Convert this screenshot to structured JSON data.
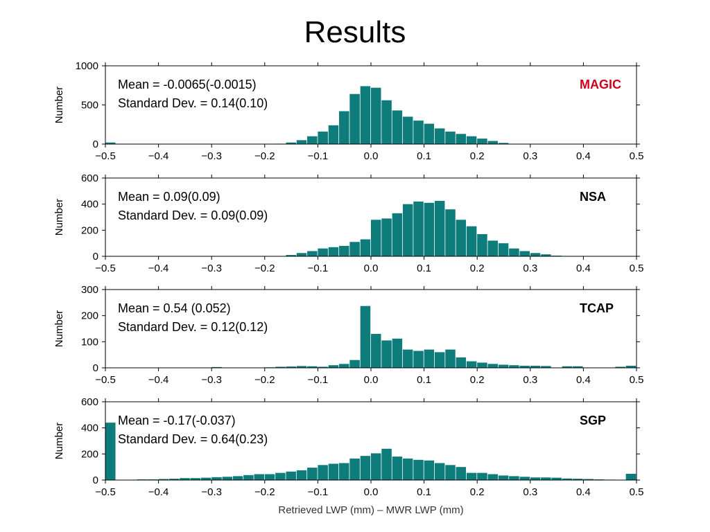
{
  "slide": {
    "title": "Results"
  },
  "chart_data": [
    {
      "type": "bar",
      "site_label": "MAGIC",
      "site_color": "#d0021b",
      "bar_color": "#0e7c7b",
      "mean_text": "Mean = -0.0065(-0.0015)",
      "std_text": "Standard Dev. = 0.14(0.10)",
      "ylabel": "Number",
      "xlabel": "",
      "xlim": [
        -0.5,
        0.5
      ],
      "ylim": [
        0,
        1000
      ],
      "yticks": [
        "0",
        "500",
        "1000"
      ],
      "xticks": [
        "−0.5",
        "−0.4",
        "−0.3",
        "−0.2",
        "−0.1",
        "0.0",
        "0.1",
        "0.2",
        "0.3",
        "0.4",
        "0.5"
      ],
      "bin_width": 0.02,
      "bin_starts": [
        -0.5,
        -0.18,
        -0.16,
        -0.14,
        -0.12,
        -0.1,
        -0.08,
        -0.06,
        -0.04,
        -0.02,
        0.0,
        0.02,
        0.04,
        0.06,
        0.08,
        0.1,
        0.12,
        0.14,
        0.16,
        0.18,
        0.2,
        0.22,
        0.24
      ],
      "values": [
        20,
        5,
        20,
        50,
        100,
        160,
        240,
        420,
        640,
        740,
        720,
        560,
        430,
        350,
        300,
        260,
        200,
        160,
        130,
        100,
        70,
        40,
        15
      ]
    },
    {
      "type": "bar",
      "site_label": "NSA",
      "site_color": "#000000",
      "bar_color": "#0e7c7b",
      "mean_text": "Mean = 0.09(0.09)",
      "std_text": "Standard Dev. = 0.09(0.09)",
      "ylabel": "Number",
      "xlabel": "",
      "xlim": [
        -0.5,
        0.5
      ],
      "ylim": [
        0,
        600
      ],
      "yticks": [
        "0",
        "200",
        "400",
        "600"
      ],
      "xticks": [
        "−0.5",
        "−0.4",
        "−0.3",
        "−0.2",
        "−0.1",
        "0.0",
        "0.1",
        "0.2",
        "0.3",
        "0.4",
        "0.5"
      ],
      "bin_width": 0.02,
      "bin_starts": [
        -0.16,
        -0.14,
        -0.12,
        -0.1,
        -0.08,
        -0.06,
        -0.04,
        -0.02,
        0.0,
        0.02,
        0.04,
        0.06,
        0.08,
        0.1,
        0.12,
        0.14,
        0.16,
        0.18,
        0.2,
        0.22,
        0.24,
        0.26,
        0.28,
        0.3,
        0.32,
        0.34
      ],
      "values": [
        10,
        25,
        40,
        60,
        70,
        80,
        110,
        130,
        280,
        290,
        330,
        400,
        420,
        410,
        425,
        360,
        280,
        230,
        170,
        120,
        100,
        60,
        40,
        25,
        15,
        5
      ]
    },
    {
      "type": "bar",
      "site_label": "TCAP",
      "site_color": "#000000",
      "bar_color": "#0e7c7b",
      "mean_text": "Mean = 0.54 (0.052)",
      "std_text": "Standard Dev. = 0.12(0.12)",
      "ylabel": "Number",
      "xlabel": "",
      "xlim": [
        -0.5,
        0.5
      ],
      "ylim": [
        0,
        300
      ],
      "yticks": [
        "0",
        "100",
        "200",
        "300"
      ],
      "xticks": [
        "−0.5",
        "−0.4",
        "−0.3",
        "−0.2",
        "−0.1",
        "0.0",
        "0.1",
        "0.2",
        "0.3",
        "0.4",
        "0.5"
      ],
      "bin_width": 0.02,
      "bin_starts": [
        -0.3,
        -0.2,
        -0.18,
        -0.16,
        -0.14,
        -0.12,
        -0.1,
        -0.08,
        -0.06,
        -0.04,
        -0.02,
        0.0,
        0.02,
        0.04,
        0.06,
        0.08,
        0.1,
        0.12,
        0.14,
        0.16,
        0.18,
        0.2,
        0.22,
        0.24,
        0.26,
        0.28,
        0.3,
        0.32,
        0.36,
        0.38,
        0.46,
        0.48
      ],
      "values": [
        3,
        2,
        4,
        5,
        7,
        6,
        4,
        10,
        15,
        30,
        237,
        130,
        105,
        112,
        70,
        65,
        70,
        60,
        70,
        40,
        25,
        20,
        15,
        12,
        10,
        8,
        8,
        7,
        6,
        6,
        4,
        8
      ]
    },
    {
      "type": "bar",
      "site_label": "SGP",
      "site_color": "#000000",
      "bar_color": "#0e7c7b",
      "mean_text": "Mean = -0.17(-0.037)",
      "std_text": "Standard Dev. = 0.64(0.23)",
      "ylabel": "Number",
      "xlabel": "Retrieved LWP (mm) – MWR LWP (mm)",
      "xlim": [
        -0.5,
        0.5
      ],
      "ylim": [
        0,
        600
      ],
      "yticks": [
        "0",
        "200",
        "400",
        "600"
      ],
      "xticks": [
        "−0.5",
        "−0.4",
        "−0.3",
        "−0.2",
        "−0.1",
        "0.0",
        "0.1",
        "0.2",
        "0.3",
        "0.4",
        "0.5"
      ],
      "bin_width": 0.02,
      "bin_starts": [
        -0.5,
        -0.44,
        -0.42,
        -0.4,
        -0.38,
        -0.36,
        -0.34,
        -0.32,
        -0.3,
        -0.28,
        -0.26,
        -0.24,
        -0.22,
        -0.2,
        -0.18,
        -0.16,
        -0.14,
        -0.12,
        -0.1,
        -0.08,
        -0.06,
        -0.04,
        -0.02,
        0.0,
        0.02,
        0.04,
        0.06,
        0.08,
        0.1,
        0.12,
        0.14,
        0.16,
        0.18,
        0.2,
        0.22,
        0.24,
        0.26,
        0.28,
        0.3,
        0.32,
        0.34,
        0.36,
        0.38,
        0.4,
        0.42,
        0.44,
        0.48
      ],
      "values": [
        440,
        5,
        5,
        8,
        10,
        15,
        15,
        18,
        22,
        25,
        30,
        38,
        45,
        45,
        55,
        65,
        75,
        95,
        115,
        125,
        130,
        165,
        185,
        205,
        240,
        180,
        165,
        155,
        150,
        130,
        115,
        100,
        55,
        55,
        45,
        35,
        30,
        25,
        20,
        20,
        18,
        12,
        10,
        8,
        5,
        3,
        48
      ]
    }
  ]
}
